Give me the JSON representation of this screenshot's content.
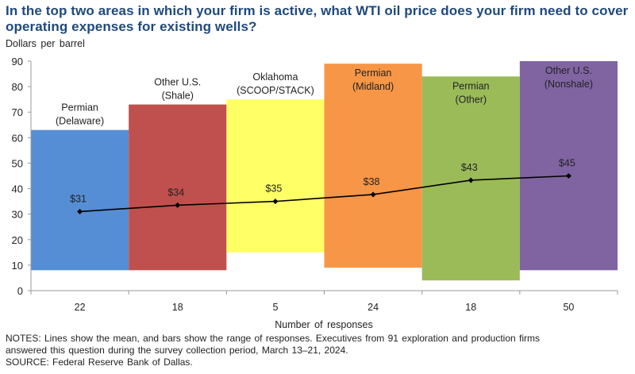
{
  "title": "In the top two areas in which your firm is active, what WTI oil price does your firm need to cover operating expenses for existing wells?",
  "unit_label": "Dollars per barrel",
  "notes": {
    "line1": "NOTES: Lines show the mean, and bars show the range of responses. Executives from 91 exploration and production firms",
    "line2": "answered this question during the survey collection period, March 13–21, 2024.",
    "source": "SOURCE: Federal Reserve Bank of Dallas."
  },
  "chart_data": {
    "type": "bar",
    "subtype": "floating-range bars with mean line",
    "title": "In the top two areas in which your firm is active, what WTI oil price does your firm need to cover operating expenses for existing wells?",
    "ylabel": "Dollars per barrel",
    "xlabel": "Number of responses",
    "ylim": [
      0,
      90
    ],
    "yticks": [
      0,
      10,
      20,
      30,
      40,
      50,
      60,
      70,
      80,
      90
    ],
    "grid": false,
    "categories": [
      "22",
      "18",
      "5",
      "24",
      "18",
      "50"
    ],
    "areas": [
      {
        "label_line1": "Permian",
        "label_line2": "(Delaware)",
        "responses": "22",
        "low": 8,
        "high": 63,
        "mean": 31,
        "mean_label": "$31",
        "color": "#558ed5"
      },
      {
        "label_line1": "Other U.S.",
        "label_line2": "(Shale)",
        "responses": "18",
        "low": 8,
        "high": 73,
        "mean": 33.5,
        "mean_label": "$34",
        "color": "#c0504d"
      },
      {
        "label_line1": "Oklahoma",
        "label_line2": "(SCOOP/STACK)",
        "responses": "5",
        "low": 15,
        "high": 75,
        "mean": 35,
        "mean_label": "$35",
        "color": "#ffff66"
      },
      {
        "label_line1": "Permian",
        "label_line2": "(Midland)",
        "responses": "24",
        "low": 9,
        "high": 89,
        "mean": 37.7,
        "mean_label": "$38",
        "color": "#f79646"
      },
      {
        "label_line1": "Permian",
        "label_line2": "(Other)",
        "responses": "18",
        "low": 4,
        "high": 84,
        "mean": 43.3,
        "mean_label": "$43",
        "color": "#9bbb59"
      },
      {
        "label_line1": "Other U.S.",
        "label_line2": "(Nonshale)",
        "responses": "50",
        "low": 8,
        "high": 90,
        "mean": 45,
        "mean_label": "$45",
        "color": "#8064a2"
      }
    ],
    "series": [
      {
        "name": "Range",
        "type": "floating-bar"
      },
      {
        "name": "Mean",
        "type": "line",
        "color": "#000000",
        "values": [
          31,
          33.5,
          35,
          37.7,
          43.3,
          45
        ]
      }
    ]
  }
}
